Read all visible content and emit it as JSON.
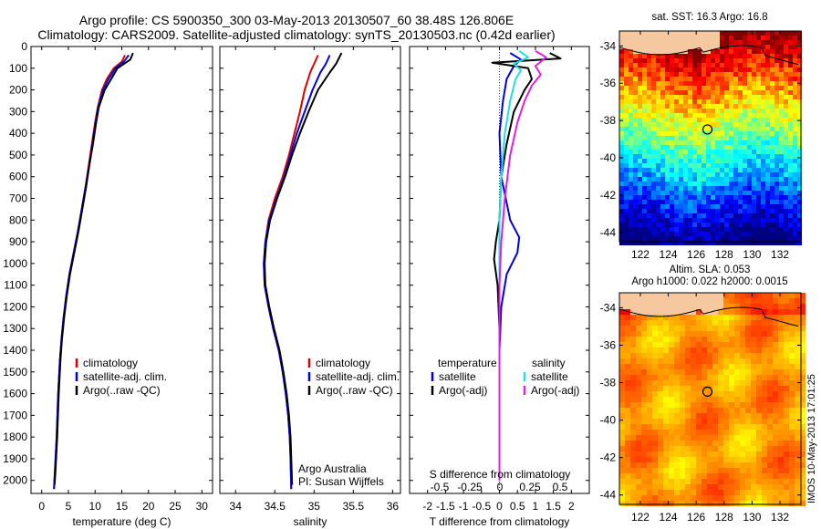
{
  "title_line1": "Argo profile: CS 5900350_300 03-May-2013 20130507_60 38.48S 126.806E",
  "title_line2": "Climatology: CARS2009. Satellite-adjusted climatology: synTS_20130503.nc (0.42d earlier)",
  "footer_note": "IMOS 10-May-2013 17:01:25",
  "colors": {
    "climatology": "#e00000",
    "satellite": "#0000e0",
    "argo": "#000000",
    "satellite_salt": "#20e0e0",
    "argo_salt": "#e020e0"
  },
  "chart_data": [
    {
      "type": "line",
      "panel": "temperature",
      "xlabel": "temperature (deg C)",
      "ylabel": "",
      "xlim": [
        -2,
        32
      ],
      "ylim": [
        2060,
        0
      ],
      "xticks": [
        0,
        5,
        10,
        15,
        20,
        25,
        30
      ],
      "yticks": [
        0,
        100,
        200,
        300,
        400,
        500,
        600,
        700,
        800,
        900,
        1000,
        1100,
        1200,
        1300,
        1400,
        1500,
        1600,
        1700,
        1800,
        1900,
        2000
      ],
      "legend_position": "lower-center",
      "legend": [
        "climatology",
        "satellite-adj. clim.",
        "Argo(..raw -QC)"
      ],
      "series": [
        {
          "name": "climatology",
          "color": "#e00000",
          "points": [
            [
              15.6,
              40
            ],
            [
              15.0,
              70
            ],
            [
              13.5,
              100
            ],
            [
              12.2,
              150
            ],
            [
              11.3,
              200
            ],
            [
              10.5,
              280
            ],
            [
              10.0,
              350
            ],
            [
              9.4,
              450
            ],
            [
              8.8,
              550
            ],
            [
              8.2,
              650
            ],
            [
              7.5,
              750
            ],
            [
              6.8,
              850
            ],
            [
              6.0,
              950
            ],
            [
              5.2,
              1050
            ],
            [
              4.6,
              1150
            ],
            [
              4.1,
              1250
            ],
            [
              3.7,
              1350
            ],
            [
              3.4,
              1450
            ],
            [
              3.1,
              1600
            ],
            [
              2.8,
              1800
            ],
            [
              2.5,
              1950
            ],
            [
              2.3,
              2040
            ]
          ]
        },
        {
          "name": "satellite-adj. clim.",
          "color": "#0000e0",
          "points": [
            [
              16.3,
              40
            ],
            [
              15.4,
              70
            ],
            [
              13.8,
              100
            ],
            [
              12.5,
              150
            ],
            [
              11.5,
              200
            ],
            [
              10.6,
              280
            ],
            [
              10.1,
              350
            ],
            [
              9.5,
              450
            ],
            [
              8.9,
              550
            ],
            [
              8.2,
              650
            ],
            [
              7.5,
              750
            ],
            [
              6.8,
              850
            ],
            [
              6.0,
              950
            ],
            [
              5.2,
              1050
            ],
            [
              4.6,
              1150
            ],
            [
              4.1,
              1250
            ],
            [
              3.7,
              1350
            ],
            [
              3.4,
              1450
            ],
            [
              3.1,
              1600
            ],
            [
              2.8,
              1800
            ],
            [
              2.5,
              1950
            ],
            [
              2.3,
              2040
            ]
          ]
        },
        {
          "name": "Argo(..raw -QC)",
          "color": "#000000",
          "points": [
            [
              17.1,
              30
            ],
            [
              16.6,
              60
            ],
            [
              14.2,
              100
            ],
            [
              13.0,
              150
            ],
            [
              11.8,
              200
            ],
            [
              10.7,
              280
            ],
            [
              10.2,
              350
            ],
            [
              9.6,
              450
            ],
            [
              8.9,
              550
            ],
            [
              8.3,
              650
            ],
            [
              7.6,
              750
            ],
            [
              6.9,
              850
            ],
            [
              6.1,
              950
            ],
            [
              5.3,
              1050
            ],
            [
              4.7,
              1150
            ],
            [
              4.2,
              1250
            ],
            [
              3.8,
              1350
            ],
            [
              3.5,
              1450
            ],
            [
              3.2,
              1600
            ],
            [
              2.9,
              1800
            ],
            [
              2.6,
              1950
            ],
            [
              2.4,
              2020
            ]
          ]
        }
      ]
    },
    {
      "type": "line",
      "panel": "salinity",
      "xlabel": "salinity",
      "ylabel": "",
      "xlim": [
        33.8,
        36.1
      ],
      "ylim": [
        2060,
        0
      ],
      "xticks": [
        34,
        34.5,
        35,
        35.5,
        36
      ],
      "legend_position": "lower-center",
      "legend": [
        "climatology",
        "satellite-adj. clim.",
        "Argo(..raw -QC)"
      ],
      "annotations": [
        "Argo Australia",
        "PI: Susan Wijffels"
      ],
      "series": [
        {
          "name": "climatology",
          "color": "#e00000",
          "points": [
            [
              35.05,
              40
            ],
            [
              35.0,
              80
            ],
            [
              34.95,
              120
            ],
            [
              34.88,
              200
            ],
            [
              34.82,
              300
            ],
            [
              34.75,
              400
            ],
            [
              34.68,
              500
            ],
            [
              34.6,
              600
            ],
            [
              34.5,
              700
            ],
            [
              34.42,
              800
            ],
            [
              34.38,
              900
            ],
            [
              34.36,
              1000
            ],
            [
              34.37,
              1100
            ],
            [
              34.42,
              1200
            ],
            [
              34.48,
              1300
            ],
            [
              34.55,
              1400
            ],
            [
              34.6,
              1500
            ],
            [
              34.64,
              1600
            ],
            [
              34.67,
              1700
            ],
            [
              34.69,
              1800
            ],
            [
              34.7,
              1900
            ],
            [
              34.71,
              2040
            ]
          ]
        },
        {
          "name": "satellite-adj. clim.",
          "color": "#0000e0",
          "points": [
            [
              35.2,
              40
            ],
            [
              35.15,
              80
            ],
            [
              35.08,
              120
            ],
            [
              34.98,
              200
            ],
            [
              34.88,
              300
            ],
            [
              34.78,
              400
            ],
            [
              34.7,
              500
            ],
            [
              34.62,
              600
            ],
            [
              34.52,
              700
            ],
            [
              34.43,
              800
            ],
            [
              34.38,
              900
            ],
            [
              34.36,
              1000
            ],
            [
              34.37,
              1100
            ],
            [
              34.42,
              1200
            ],
            [
              34.48,
              1300
            ],
            [
              34.55,
              1400
            ],
            [
              34.6,
              1500
            ],
            [
              34.64,
              1600
            ],
            [
              34.67,
              1700
            ],
            [
              34.69,
              1800
            ],
            [
              34.7,
              1900
            ],
            [
              34.71,
              2040
            ]
          ]
        },
        {
          "name": "Argo(..raw -QC)",
          "color": "#000000",
          "points": [
            [
              35.35,
              30
            ],
            [
              35.28,
              80
            ],
            [
              35.2,
              120
            ],
            [
              35.05,
              200
            ],
            [
              34.93,
              300
            ],
            [
              34.82,
              400
            ],
            [
              34.72,
              500
            ],
            [
              34.63,
              600
            ],
            [
              34.53,
              700
            ],
            [
              34.44,
              800
            ],
            [
              34.39,
              900
            ],
            [
              34.37,
              1000
            ],
            [
              34.38,
              1100
            ],
            [
              34.43,
              1200
            ],
            [
              34.49,
              1300
            ],
            [
              34.56,
              1400
            ],
            [
              34.61,
              1500
            ],
            [
              34.65,
              1600
            ],
            [
              34.68,
              1700
            ],
            [
              34.7,
              1800
            ],
            [
              34.71,
              1900
            ],
            [
              34.72,
              2020
            ]
          ]
        }
      ]
    },
    {
      "type": "line",
      "panel": "difference",
      "xlabel": "T difference from climatology",
      "xlabel_top": "S difference from climatology",
      "xlim": [
        -2.5,
        2.5
      ],
      "ylim": [
        2060,
        0
      ],
      "xticks": [
        -2,
        -1.5,
        -1,
        -0.5,
        0,
        0.5,
        1,
        1.5,
        2
      ],
      "xtick_labels": [
        "-2",
        "-1.5",
        "-1",
        "-0.5",
        "0",
        "0.5",
        "1",
        "1.5",
        "2"
      ],
      "s_ticks": [
        "-0.5",
        "-0.25",
        "0",
        "0.25",
        "0.5"
      ],
      "legend_position": "lower",
      "legend_temperature": {
        "title": "temperature",
        "items": [
          "satellite",
          "Argo(-adj)"
        ]
      },
      "legend_salinity": {
        "title": "salinity",
        "items": [
          "satellite",
          "Argo(-adj)"
        ]
      },
      "series": [
        {
          "name": "temperature satellite",
          "color": "#0000e0",
          "points": [
            [
              0.3,
              30
            ],
            [
              0.6,
              60
            ],
            [
              0.4,
              90
            ],
            [
              0.2,
              150
            ],
            [
              0.1,
              250
            ],
            [
              0.0,
              400
            ],
            [
              0.05,
              600
            ],
            [
              0.3,
              800
            ],
            [
              0.55,
              880
            ],
            [
              0.5,
              950
            ],
            [
              0.2,
              1050
            ],
            [
              0.05,
              1200
            ],
            [
              0.0,
              1400
            ],
            [
              0.0,
              1700
            ],
            [
              0.0,
              2000
            ]
          ]
        },
        {
          "name": "temperature Argo(-adj)",
          "color": "#000000",
          "points": [
            [
              1.4,
              30
            ],
            [
              1.7,
              55
            ],
            [
              -0.2,
              75
            ],
            [
              0.8,
              100
            ],
            [
              0.9,
              150
            ],
            [
              0.7,
              200
            ],
            [
              0.4,
              300
            ],
            [
              0.2,
              450
            ],
            [
              0.05,
              600
            ],
            [
              0.0,
              800
            ],
            [
              -0.1,
              900
            ],
            [
              -0.15,
              980
            ],
            [
              -0.05,
              1100
            ],
            [
              0.0,
              1300
            ],
            [
              0.0,
              1600
            ],
            [
              0.0,
              2000
            ]
          ]
        },
        {
          "name": "salinity satellite",
          "color": "#20e0e0",
          "points": [
            [
              0.55,
              20
            ],
            [
              0.8,
              50
            ],
            [
              0.4,
              80
            ],
            [
              0.6,
              110
            ],
            [
              0.45,
              150
            ],
            [
              0.3,
              250
            ],
            [
              0.15,
              400
            ],
            [
              0.05,
              600
            ],
            [
              0.0,
              800
            ],
            [
              0.0,
              1000
            ],
            [
              0.0,
              1300
            ],
            [
              0.0,
              1700
            ],
            [
              0.0,
              2000
            ]
          ]
        },
        {
          "name": "salinity Argo(-adj)",
          "color": "#e020e0",
          "points": [
            [
              1.0,
              20
            ],
            [
              1.3,
              50
            ],
            [
              1.0,
              90
            ],
            [
              1.15,
              130
            ],
            [
              0.9,
              180
            ],
            [
              0.7,
              250
            ],
            [
              0.5,
              350
            ],
            [
              0.3,
              500
            ],
            [
              0.15,
              700
            ],
            [
              0.05,
              900
            ],
            [
              0.0,
              1100
            ],
            [
              0.0,
              1500
            ],
            [
              0.0,
              2000
            ]
          ]
        }
      ]
    },
    {
      "type": "heatmap",
      "panel": "sst_map",
      "title": "sat. SST: 16.3 Argo: 16.8",
      "xlim": [
        120.5,
        133.5
      ],
      "ylim": [
        -44.5,
        -33.2
      ],
      "xticks": [
        122,
        124,
        126,
        128,
        130,
        132
      ],
      "yticks": [
        -34,
        -36,
        -38,
        -40,
        -42,
        -44
      ],
      "argo_location": [
        126.806,
        -38.48
      ]
    },
    {
      "type": "heatmap",
      "panel": "sla_map",
      "title": "Altim. SLA: 0.053",
      "subtitle": "Argo h1000: 0.022 h2000: 0.0015",
      "xlim": [
        120.5,
        133.5
      ],
      "ylim": [
        -44.5,
        -33.2
      ],
      "xticks": [
        122,
        124,
        126,
        128,
        130,
        132
      ],
      "yticks": [
        -34,
        -36,
        -38,
        -40,
        -42,
        -44
      ],
      "argo_location": [
        126.806,
        -38.48
      ]
    }
  ]
}
